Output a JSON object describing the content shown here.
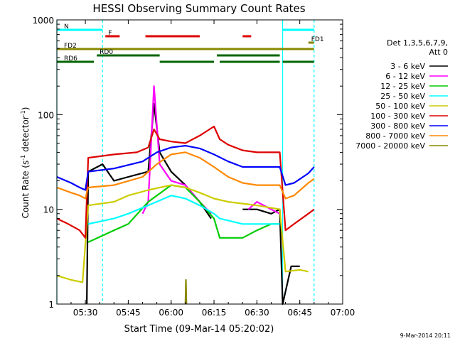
{
  "chart_data": {
    "type": "line",
    "title": "HESSI Observing Summary Count Rates",
    "xlabel": "Start Time (09-Mar-14 05:20:02)",
    "ylabel_parts": {
      "pre": "Count Rate (s",
      "sup1": "-1",
      "mid": " detector",
      "sup2": "-1",
      "post": ")"
    },
    "y_scale": "log",
    "ylim": [
      1,
      1000
    ],
    "xlim": [
      "05:20:02",
      "07:00:00"
    ],
    "x_ticks": [
      "05:30",
      "05:45",
      "06:00",
      "06:15",
      "06:30",
      "06:45",
      "07:00"
    ],
    "y_ticks": [
      "1",
      "10",
      "100",
      "1000"
    ],
    "footer_date": "9-Mar-2014 20:11",
    "legend": {
      "header": [
        "Det 1,3,5,6,7,9,",
        "Att 0"
      ],
      "placement": "right",
      "entries": [
        {
          "label": "3 - 6 keV",
          "color": "#000000"
        },
        {
          "label": "6 - 12 keV",
          "color": "#ff00ff"
        },
        {
          "label": "12 - 25 keV",
          "color": "#00cc00"
        },
        {
          "label": "25 - 50 keV",
          "color": "#00ffff"
        },
        {
          "label": "50 - 100 keV",
          "color": "#cccc00"
        },
        {
          "label": "100 - 300 keV",
          "color": "#dd0000"
        },
        {
          "label": "300 - 800 keV",
          "color": "#0000ff"
        },
        {
          "label": "800 - 7000 keV",
          "color": "#ff8800"
        },
        {
          "label": "7000 - 20000 keV",
          "color": "#888800"
        }
      ]
    },
    "series": [
      {
        "name": "3 - 6 keV",
        "color": "#000000",
        "points": [
          [
            "05:20:02",
            null
          ],
          [
            "05:28:00",
            null
          ],
          [
            "05:30:30",
            1.0
          ],
          [
            "05:31:00",
            25
          ],
          [
            "05:36:00",
            30
          ],
          [
            "05:40:00",
            20
          ],
          [
            "05:45:00",
            22
          ],
          [
            "05:52:00",
            25
          ],
          [
            "05:54:00",
            130
          ],
          [
            "05:56:00",
            40
          ],
          [
            "06:00:00",
            25
          ],
          [
            "06:05:00",
            18
          ],
          [
            "06:10:00",
            12
          ],
          [
            "06:14:00",
            8
          ],
          [
            "06:17:00",
            null
          ],
          [
            "06:24:00",
            null
          ],
          [
            "06:25:00",
            10
          ],
          [
            "06:30:00",
            10
          ],
          [
            "06:35:00",
            9
          ],
          [
            "06:38:00",
            10
          ],
          [
            "06:39:00",
            1.0
          ],
          [
            "06:42:00",
            2.5
          ],
          [
            "06:45:00",
            2.5
          ]
        ]
      },
      {
        "name": "6 - 12 keV",
        "color": "#ff00ff",
        "points": [
          [
            "05:45:00",
            null
          ],
          [
            "05:50:00",
            9
          ],
          [
            "05:52:00",
            12
          ],
          [
            "05:54:00",
            200
          ],
          [
            "05:56:00",
            30
          ],
          [
            "06:00:00",
            20
          ],
          [
            "06:05:00",
            18
          ],
          [
            "06:10:00",
            12
          ],
          [
            "06:14:00",
            9
          ],
          [
            "06:25:00",
            null
          ],
          [
            "06:27:00",
            10
          ],
          [
            "06:30:00",
            12
          ],
          [
            "06:35:00",
            10
          ],
          [
            "06:38:00",
            9
          ]
        ]
      },
      {
        "name": "12 - 25 keV",
        "color": "#00cc00",
        "points": [
          [
            "05:31:00",
            4.5
          ],
          [
            "05:40:00",
            6
          ],
          [
            "05:45:00",
            7
          ],
          [
            "05:52:00",
            12
          ],
          [
            "06:00:00",
            18
          ],
          [
            "06:05:00",
            17
          ],
          [
            "06:10:00",
            12
          ],
          [
            "06:15:00",
            8
          ],
          [
            "06:17:00",
            5
          ],
          [
            "06:25:00",
            5
          ],
          [
            "06:30:00",
            6
          ],
          [
            "06:35:00",
            7
          ],
          [
            "06:38:00",
            7
          ]
        ]
      },
      {
        "name": "25 - 50 keV",
        "color": "#00ffff",
        "points": [
          [
            "05:31:00",
            7
          ],
          [
            "05:40:00",
            8
          ],
          [
            "05:45:00",
            9
          ],
          [
            "05:52:00",
            11
          ],
          [
            "06:00:00",
            14
          ],
          [
            "06:05:00",
            13
          ],
          [
            "06:10:00",
            11
          ],
          [
            "06:15:00",
            9
          ],
          [
            "06:17:00",
            8
          ],
          [
            "06:25:00",
            7
          ],
          [
            "06:30:00",
            7
          ],
          [
            "06:38:00",
            7
          ]
        ]
      },
      {
        "name": "50 - 100 keV",
        "color": "#cccc00",
        "points": [
          [
            "05:20:02",
            2.0
          ],
          [
            "05:25:00",
            1.8
          ],
          [
            "05:29:00",
            1.7
          ],
          [
            "05:31:00",
            11
          ],
          [
            "05:40:00",
            12
          ],
          [
            "05:45:00",
            14
          ],
          [
            "05:52:00",
            16
          ],
          [
            "06:00:00",
            18
          ],
          [
            "06:05:00",
            17
          ],
          [
            "06:10:00",
            15
          ],
          [
            "06:15:00",
            13
          ],
          [
            "06:20:00",
            12
          ],
          [
            "06:30:00",
            11
          ],
          [
            "06:38:00",
            10
          ],
          [
            "06:40:00",
            2.2
          ],
          [
            "06:45:00",
            2.3
          ],
          [
            "06:48:00",
            2.2
          ]
        ]
      },
      {
        "name": "100 - 300 keV",
        "color": "#dd0000",
        "points": [
          [
            "05:20:02",
            8
          ],
          [
            "05:24:00",
            7
          ],
          [
            "05:28:00",
            6
          ],
          [
            "05:30:00",
            5
          ],
          [
            "05:31:00",
            35
          ],
          [
            "05:40:00",
            38
          ],
          [
            "05:48:00",
            40
          ],
          [
            "05:52:00",
            45
          ],
          [
            "05:54:00",
            70
          ],
          [
            "05:56:00",
            55
          ],
          [
            "06:00:00",
            52
          ],
          [
            "06:05:00",
            50
          ],
          [
            "06:10:00",
            60
          ],
          [
            "06:15:00",
            75
          ],
          [
            "06:17:00",
            55
          ],
          [
            "06:20:00",
            48
          ],
          [
            "06:25:00",
            42
          ],
          [
            "06:30:00",
            40
          ],
          [
            "06:38:00",
            40
          ],
          [
            "06:40:00",
            6
          ],
          [
            "06:43:00",
            7
          ],
          [
            "06:48:00",
            9
          ],
          [
            "06:50:00",
            10
          ]
        ]
      },
      {
        "name": "300 - 800 keV",
        "color": "#0000ff",
        "points": [
          [
            "05:20:02",
            22
          ],
          [
            "05:25:00",
            19
          ],
          [
            "05:28:00",
            17
          ],
          [
            "05:30:00",
            16
          ],
          [
            "05:31:00",
            25
          ],
          [
            "05:40:00",
            27
          ],
          [
            "05:50:00",
            32
          ],
          [
            "05:55:00",
            40
          ],
          [
            "06:00:00",
            45
          ],
          [
            "06:05:00",
            47
          ],
          [
            "06:10:00",
            44
          ],
          [
            "06:15:00",
            38
          ],
          [
            "06:20:00",
            32
          ],
          [
            "06:25:00",
            28
          ],
          [
            "06:30:00",
            28
          ],
          [
            "06:38:00",
            28
          ],
          [
            "06:40:00",
            18
          ],
          [
            "06:43:00",
            19
          ],
          [
            "06:48:00",
            24
          ],
          [
            "06:50:00",
            28
          ]
        ]
      },
      {
        "name": "800 - 7000 keV",
        "color": "#ff8800",
        "points": [
          [
            "05:20:02",
            17
          ],
          [
            "05:25:00",
            15
          ],
          [
            "05:28:00",
            14
          ],
          [
            "05:30:00",
            13
          ],
          [
            "05:31:00",
            17
          ],
          [
            "05:40:00",
            18
          ],
          [
            "05:50:00",
            22
          ],
          [
            "05:55:00",
            30
          ],
          [
            "06:00:00",
            38
          ],
          [
            "06:05:00",
            40
          ],
          [
            "06:10:00",
            35
          ],
          [
            "06:15:00",
            28
          ],
          [
            "06:20:00",
            22
          ],
          [
            "06:25:00",
            19
          ],
          [
            "06:30:00",
            18
          ],
          [
            "06:38:00",
            18
          ],
          [
            "06:40:00",
            13
          ],
          [
            "06:43:00",
            14
          ],
          [
            "06:48:00",
            19
          ],
          [
            "06:50:00",
            21
          ]
        ]
      },
      {
        "name": "7000 - 20000 keV",
        "color": "#888800",
        "points": [
          [
            "06:05:00",
            1.0
          ],
          [
            "06:05:10",
            1.8
          ],
          [
            "06:05:20",
            1.0
          ]
        ]
      }
    ],
    "flag_bars": [
      {
        "label": "N",
        "color": "#00ffff",
        "segments": [
          [
            "05:20:02",
            "05:36:00"
          ],
          [
            "06:39:00",
            "06:50:00"
          ]
        ],
        "level": 1
      },
      {
        "label": "F",
        "color": "#dd0000",
        "segments": [
          [
            "05:37:00",
            "05:42:00"
          ],
          [
            "05:51:00",
            "06:10:00"
          ],
          [
            "06:25:00",
            "06:28:00"
          ]
        ],
        "level": 2
      },
      {
        "label": "FD1",
        "color": "#888800",
        "segments": [
          [
            "06:48:00",
            "06:50:00"
          ]
        ],
        "level": 3
      },
      {
        "label": "FD2",
        "color": "#888800",
        "segments": [
          [
            "05:20:02",
            "06:50:00"
          ]
        ],
        "level": 4
      },
      {
        "label": "RD0",
        "color": "#006600",
        "segments": [
          [
            "05:34:00",
            "05:56:00"
          ],
          [
            "06:16:00",
            "06:38:00"
          ]
        ],
        "level": 5
      },
      {
        "label": "RD6",
        "color": "#006600",
        "segments": [
          [
            "05:20:02",
            "05:33:00"
          ],
          [
            "05:56:00",
            "06:15:00"
          ],
          [
            "06:17:00",
            "06:38:00"
          ],
          [
            "06:39:00",
            "06:50:00"
          ]
        ],
        "level": 6
      }
    ],
    "vertical_markers": [
      {
        "color": "#00ffff",
        "time": "05:20:02",
        "style": "solid"
      },
      {
        "color": "#00ffff",
        "time": "05:36:00",
        "style": "dashed"
      },
      {
        "color": "#00ffff",
        "time": "06:39:00",
        "style": "solid"
      },
      {
        "color": "#00ffff",
        "time": "06:50:00",
        "style": "dashed"
      }
    ]
  }
}
